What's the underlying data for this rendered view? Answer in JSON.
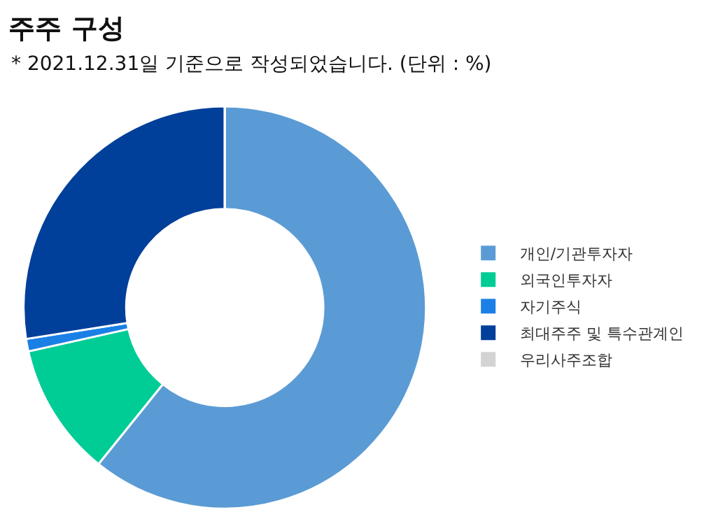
{
  "chart_data": {
    "type": "donut",
    "title": "주주 구성",
    "subtitle": "* 2021.12.31일 기준으로 작성되었습니다. (단위 : %)",
    "categories": [
      "개인/기관투자자",
      "외국인투자자",
      "자기주식",
      "최대주주 및 특수관계인",
      "우리사주조합"
    ],
    "values": [
      60.8,
      10.7,
      1.0,
      27.5,
      0
    ],
    "colors": [
      "#5b9bd5",
      "#00cc96",
      "#1a80e6",
      "#003f9a",
      "#d3d3d3"
    ],
    "legend": "right"
  }
}
